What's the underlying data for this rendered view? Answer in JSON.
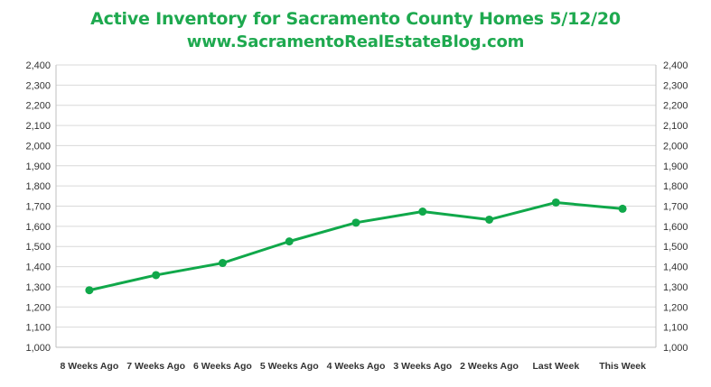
{
  "colors": {
    "accent": "#1ea94f",
    "line": "#10a84a",
    "highlight_tick": "#1ea94f"
  },
  "chart_data": {
    "type": "line",
    "title": "Active Inventory for Sacramento County Homes 5/12/20",
    "subtitle": "www.SacramentoRealEstateBlog.com",
    "categories": [
      "8 Weeks Ago",
      "7 Weeks Ago",
      "6 Weeks Ago",
      "5 Weeks Ago",
      "4 Weeks Ago",
      "3 Weeks Ago",
      "2 Weeks Ago",
      "Last Week",
      "This Week"
    ],
    "values": [
      1283,
      1358,
      1418,
      1525,
      1618,
      1673,
      1633,
      1718,
      1687
    ],
    "highlight_category": "This Week",
    "ylim": [
      1000,
      2400
    ],
    "ystep": 100,
    "ytick_labels": [
      "1,000",
      "1,100",
      "1,200",
      "1,300",
      "1,400",
      "1,500",
      "1,600",
      "1,700",
      "1,800",
      "1,900",
      "2,000",
      "2,100",
      "2,200",
      "2,300",
      "2,400"
    ],
    "secondary_axis": true,
    "grid": true,
    "markers": true
  }
}
